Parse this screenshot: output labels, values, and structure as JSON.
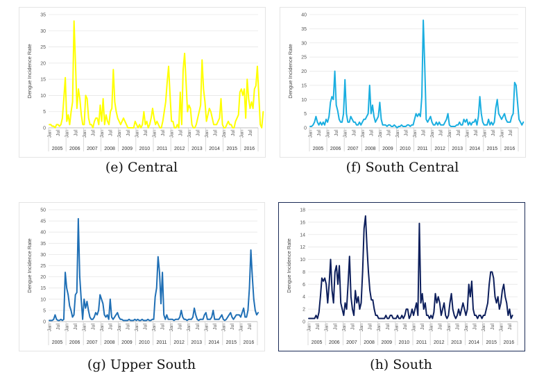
{
  "chart_data": [
    {
      "type": "line",
      "caption": "(e) Central",
      "ylabel": "Dengue Incidence Rate",
      "ylim": [
        0,
        35
      ],
      "yticks": [
        0,
        5,
        10,
        15,
        20,
        25,
        30,
        35
      ],
      "years": [
        "2005",
        "2006",
        "2007",
        "2008",
        "2009",
        "2010",
        "2011",
        "2012",
        "2013",
        "2014",
        "2015",
        "2016"
      ],
      "month_ticks": [
        "Jan",
        "Jul"
      ],
      "color": "#ffff00",
      "values": [
        1,
        1,
        0.5,
        0.5,
        0,
        1,
        1,
        0.5,
        1,
        3,
        9,
        15.5,
        2,
        4,
        1,
        5,
        8,
        33,
        20,
        6,
        12,
        9,
        4,
        1,
        1,
        10,
        9,
        3,
        1,
        1,
        0,
        2,
        3,
        3,
        1,
        7,
        2,
        9,
        1,
        4,
        2,
        1,
        5,
        6,
        18,
        8,
        5,
        3,
        2,
        1,
        2,
        3,
        2,
        1,
        0,
        0,
        0,
        0,
        0,
        2,
        1,
        0,
        1,
        0,
        1,
        5,
        1,
        2,
        0,
        1,
        3,
        6,
        3,
        1,
        2,
        1,
        0,
        0,
        2,
        5,
        8,
        14,
        19,
        10,
        2,
        2,
        0,
        0,
        1,
        0,
        11,
        1,
        18,
        23,
        14,
        5,
        7,
        6,
        1,
        0,
        0,
        1,
        3,
        5,
        7,
        21,
        12,
        8,
        2,
        4,
        6,
        5,
        3,
        1,
        1,
        1,
        2,
        3,
        9,
        1,
        0,
        0,
        1,
        2,
        1,
        1,
        0,
        0,
        2,
        3,
        4,
        11,
        12,
        10,
        12,
        3,
        15,
        9,
        6,
        8,
        6,
        12,
        13,
        19,
        10,
        1,
        0,
        5
      ]
    },
    {
      "type": "line",
      "caption": "(f) South Central",
      "ylabel": "Dengue Incidence Rate",
      "ylim": [
        0,
        40
      ],
      "yticks": [
        0,
        5,
        10,
        15,
        20,
        25,
        30,
        35,
        40
      ],
      "years": [
        "2005",
        "2006",
        "2007",
        "2008",
        "2009",
        "2010",
        "2011",
        "2012",
        "2013",
        "2014",
        "2015",
        "2016"
      ],
      "month_ticks": [
        "Jan",
        "Jul"
      ],
      "color": "#1aaee0",
      "values": [
        0.5,
        0.5,
        1,
        2,
        4,
        2,
        1,
        2,
        1,
        2,
        1,
        3,
        2,
        4,
        9,
        11,
        10,
        20,
        8,
        6,
        3,
        2,
        2,
        5,
        17,
        5,
        2,
        2,
        4,
        3,
        2,
        2,
        1,
        1,
        2,
        1,
        2,
        3,
        3,
        4,
        5,
        15,
        5,
        8,
        4,
        2,
        3,
        4,
        9,
        3,
        1,
        1,
        1,
        0.5,
        1,
        1,
        0.5,
        0.5,
        1,
        0.5,
        0,
        0.5,
        0.5,
        1,
        0.5,
        0.5,
        0.5,
        1,
        1,
        0.5,
        1,
        1,
        3,
        5,
        4,
        5,
        4,
        11,
        38,
        22,
        3,
        2,
        3,
        4,
        2,
        1,
        1,
        2,
        1,
        2,
        1,
        1,
        1,
        2,
        3,
        5,
        1,
        0.5,
        0.5,
        0.5,
        0.5,
        1,
        1,
        2,
        1,
        1,
        3,
        2,
        3,
        1,
        2,
        1,
        2,
        2,
        3,
        1,
        4,
        11,
        5,
        2,
        1,
        1,
        1,
        3,
        1,
        2,
        1,
        2,
        7,
        10,
        5,
        4,
        3,
        4,
        5,
        3,
        2,
        2,
        2,
        4,
        5,
        16,
        15,
        9,
        3,
        2,
        1,
        2
      ]
    },
    {
      "type": "line",
      "caption": "(g) Upper South",
      "ylabel": "Dengue Incidence Rate",
      "ylim": [
        0,
        50
      ],
      "yticks": [
        0,
        5,
        10,
        15,
        20,
        25,
        30,
        35,
        40,
        45,
        50
      ],
      "years": [
        "2005",
        "2006",
        "2007",
        "2008",
        "2009",
        "2010",
        "2011",
        "2012",
        "2013",
        "2014",
        "2015",
        "2016"
      ],
      "month_ticks": [
        "Jan",
        "Jul"
      ],
      "color": "#1f6fb5",
      "values": [
        0.5,
        0.5,
        0.5,
        1,
        3,
        1,
        0.5,
        0.5,
        1,
        0.5,
        1,
        22,
        15,
        12,
        7,
        5,
        2,
        3,
        12,
        13,
        46,
        20,
        10,
        1,
        10,
        6,
        9,
        5,
        2,
        1,
        1,
        2,
        4,
        3,
        5,
        12,
        10,
        8,
        3,
        2,
        3,
        1,
        10,
        2,
        1,
        2,
        3,
        4,
        2,
        1,
        1,
        0.5,
        0.5,
        0.5,
        0.5,
        1,
        0.5,
        0.5,
        0.5,
        1,
        0.5,
        1,
        0.5,
        0.5,
        1,
        0.5,
        0.5,
        0.5,
        1,
        0.5,
        0.5,
        1,
        1,
        11,
        15,
        29,
        22,
        8,
        22,
        3,
        1,
        3,
        1,
        1,
        1,
        1,
        0.5,
        1,
        1,
        1,
        2,
        5,
        2,
        1,
        1,
        0.5,
        1,
        1,
        1,
        2,
        6,
        3,
        1,
        0.5,
        1,
        1,
        1,
        3,
        4,
        1,
        1,
        1,
        2,
        5,
        1,
        1,
        1,
        1,
        2,
        3,
        1,
        0.5,
        1,
        2,
        3,
        4,
        2,
        1,
        2,
        3,
        3,
        3,
        2,
        4,
        6,
        2,
        2,
        5,
        15,
        32,
        20,
        10,
        5,
        3,
        4
      ]
    },
    {
      "type": "line",
      "caption": "(h) South",
      "ylabel": "Dengue Incidence Rate",
      "ylim": [
        0,
        18
      ],
      "yticks": [
        0,
        2,
        4,
        6,
        8,
        10,
        12,
        14,
        16,
        18
      ],
      "years": [
        "2005",
        "2006",
        "2007",
        "2008",
        "2009",
        "2010",
        "2011",
        "2012",
        "2013",
        "2014",
        "2015",
        "2016"
      ],
      "month_ticks": [
        "Jan",
        "Jul"
      ],
      "color": "#0d1f5c",
      "values": [
        0.5,
        0.5,
        0.5,
        0.5,
        0.5,
        1,
        0.5,
        1.5,
        4,
        7,
        6.5,
        7,
        6,
        3,
        6,
        10,
        5,
        3,
        8,
        9,
        6,
        9,
        3,
        2,
        1,
        3,
        2,
        6,
        10.5,
        4,
        2,
        1,
        5,
        3,
        4,
        2,
        3,
        8,
        15,
        17,
        12,
        8,
        5,
        3.5,
        3.5,
        2,
        1,
        1,
        0.5,
        0.5,
        0.5,
        0.5,
        0.5,
        1,
        0.5,
        0.5,
        1,
        1,
        0.5,
        0.5,
        0.5,
        1,
        0.5,
        0.5,
        1,
        0.5,
        1,
        2,
        2,
        0.5,
        1,
        2,
        1,
        2,
        3,
        1,
        15.8,
        3,
        4.5,
        2,
        3,
        1,
        1,
        0.5,
        1,
        0.5,
        1.5,
        4.5,
        3,
        4,
        3,
        1,
        2,
        3,
        1,
        0.5,
        1,
        3,
        4.5,
        2,
        1,
        0.5,
        1,
        2,
        1,
        2,
        3,
        2,
        1,
        2,
        6,
        4,
        6.5,
        2,
        1,
        1,
        0.5,
        1,
        1,
        0.5,
        1,
        1,
        2,
        3,
        6,
        8,
        8,
        7,
        4,
        3,
        4,
        2,
        3,
        5,
        6,
        4,
        3,
        1,
        2,
        0.5,
        1
      ]
    }
  ]
}
